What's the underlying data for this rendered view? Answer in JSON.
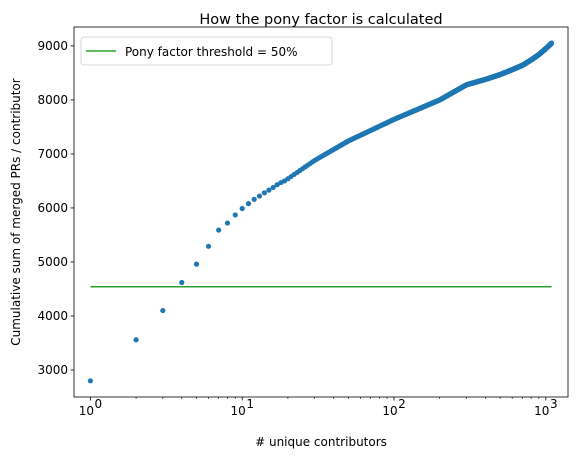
{
  "chart_data": {
    "type": "scatter",
    "title": "How the pony factor is calculated",
    "xlabel": "# unique contributors",
    "ylabel": "Cumulative sum of merged PRs / contributor",
    "xscale": "log",
    "xlim": [
      0.78,
      1400
    ],
    "ylim": [
      2500,
      9350
    ],
    "x_ticks": [
      1,
      10,
      100,
      1000
    ],
    "x_tick_labels": [
      "10",
      "10",
      "10",
      "10"
    ],
    "x_tick_exponents": [
      "0",
      "1",
      "2",
      "3"
    ],
    "y_ticks": [
      3000,
      4000,
      5000,
      6000,
      7000,
      8000,
      9000
    ],
    "y_tick_labels": [
      "3000",
      "4000",
      "5000",
      "6000",
      "7000",
      "8000",
      "9000"
    ],
    "grid": false,
    "legend": {
      "placement": "top-left",
      "entries": [
        "Pony factor threshold = 50%"
      ]
    },
    "series": [
      {
        "name": "Pony factor threshold = 50%",
        "kind": "line",
        "color": "#2ca02c",
        "x": [
          1,
          1090
        ],
        "y": [
          4540,
          4540
        ]
      },
      {
        "kind": "scatter",
        "color": "#1f77b4",
        "x": [
          1,
          2,
          3,
          4,
          5,
          6,
          7,
          8,
          9,
          10,
          11,
          12,
          13,
          14,
          15,
          16,
          17,
          18,
          19,
          20,
          30,
          50,
          100,
          200,
          300,
          400,
          500,
          600,
          700,
          800,
          900,
          1000,
          1090
        ],
        "y": [
          2800,
          3560,
          4100,
          4620,
          4960,
          5290,
          5590,
          5720,
          5870,
          5990,
          6080,
          6160,
          6220,
          6280,
          6330,
          6380,
          6430,
          6470,
          6500,
          6540,
          6880,
          7240,
          7640,
          8000,
          8280,
          8380,
          8470,
          8560,
          8640,
          8740,
          8840,
          8950,
          9050
        ]
      }
    ]
  }
}
